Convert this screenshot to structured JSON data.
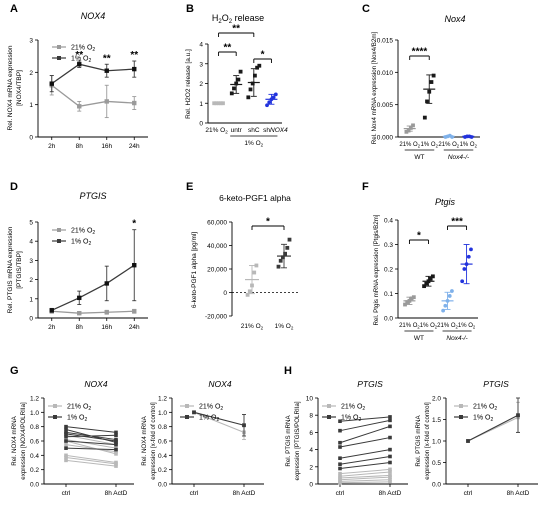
{
  "colors": {
    "black": "#1a1a1a",
    "gray": "#9a9a9a",
    "light_gray": "#b8b8b8",
    "blue": "#2233dd",
    "light_blue": "#7fb1ea",
    "dark_line": "#3a3a3a"
  },
  "chart_data": [
    {
      "panel": "A",
      "type": "line",
      "title": "NOX4",
      "ylabel_lines": [
        "Rel. NOX4 mRNA expression",
        "[NOX4/TBP]"
      ],
      "x": [
        "2h",
        "8h",
        "16h",
        "24h"
      ],
      "ylim": [
        0,
        3
      ],
      "yticks": [
        "0",
        "1",
        "2",
        "3"
      ],
      "series": [
        {
          "name": "21% O2",
          "values": [
            1.6,
            0.95,
            1.1,
            1.05
          ],
          "err": [
            0.3,
            0.15,
            0.5,
            0.2
          ]
        },
        {
          "name": "1% O2",
          "values": [
            1.65,
            2.25,
            2.05,
            2.1
          ],
          "err": [
            0.25,
            0.1,
            0.2,
            0.25
          ]
        }
      ],
      "annotations": [
        {
          "x": "8h",
          "text": "**"
        },
        {
          "x": "16h",
          "text": "**"
        },
        {
          "x": "24h",
          "text": "**"
        }
      ]
    },
    {
      "panel": "B",
      "type": "scatter",
      "title": "H2O2 release",
      "ylabel": "Rel. H2O2 release [a.u.]",
      "categories": [
        "21% O2",
        "untr",
        "shC",
        "shNOX4"
      ],
      "group_label": "1% O2",
      "ylim": [
        0,
        4
      ],
      "yticks": [
        "0",
        "1",
        "2",
        "3",
        "4"
      ],
      "groups": [
        {
          "name": "21% O2",
          "mean": 1.0,
          "sd": 0.0,
          "points": [
            1.0,
            1.0,
            1.0,
            1.0,
            1.0
          ]
        },
        {
          "name": "untr",
          "mean": 1.95,
          "sd": 0.45,
          "points": [
            1.5,
            1.75,
            2.0,
            2.2,
            2.6
          ]
        },
        {
          "name": "shC",
          "mean": 2.05,
          "sd": 0.7,
          "points": [
            1.3,
            1.7,
            2.0,
            2.4,
            2.8,
            2.9
          ]
        },
        {
          "name": "shNOX4",
          "mean": 1.2,
          "sd": 0.25,
          "points": [
            0.9,
            1.05,
            1.2,
            1.3,
            1.45
          ]
        }
      ],
      "significance": [
        {
          "from": "21% O2",
          "to": "shC",
          "text": "**"
        },
        {
          "from": "21% O2",
          "to": "untr",
          "text": "**"
        },
        {
          "from": "shC",
          "to": "shNOX4",
          "text": "*"
        }
      ]
    },
    {
      "panel": "C",
      "type": "scatter",
      "title": "Nox4",
      "ylabel": "Rel. Nox4 mRNA expression [Nox4/B2m]",
      "categories": [
        "21% O2",
        "1% O2",
        "21% O2",
        "1% O2"
      ],
      "groups_label": [
        "WT",
        "Nox4-/-"
      ],
      "ylim": [
        0,
        0.015
      ],
      "yticks": [
        "0.000",
        "0.005",
        "0.010",
        "0.015"
      ],
      "groups": [
        {
          "genotype": "WT",
          "condition": "21% O2",
          "mean": 0.0013,
          "sd": 0.0004,
          "points": [
            0.0008,
            0.001,
            0.0014,
            0.0018
          ]
        },
        {
          "genotype": "WT",
          "condition": "1% O2",
          "mean": 0.0074,
          "sd": 0.0022,
          "points": [
            0.003,
            0.0055,
            0.007,
            0.0085,
            0.0095
          ]
        },
        {
          "genotype": "Nox4-/-",
          "condition": "21% O2",
          "mean": 0.0001,
          "sd": 0.0001,
          "points": [
            0.0,
            0.0001,
            0.0002,
            0.0
          ]
        },
        {
          "genotype": "Nox4-/-",
          "condition": "1% O2",
          "mean": 0.0001,
          "sd": 0.0001,
          "points": [
            0.0,
            0.0001,
            0.0001,
            0.0
          ]
        }
      ],
      "significance": [
        {
          "from": 0,
          "to": 1,
          "text": "****"
        }
      ]
    },
    {
      "panel": "D",
      "type": "line",
      "title": "PTGIS",
      "ylabel_lines": [
        "Rel. PTGIS mRNA expression",
        "[PTGIS/TBP]"
      ],
      "x": [
        "2h",
        "8h",
        "16h",
        "24h"
      ],
      "ylim": [
        0,
        5
      ],
      "yticks": [
        "0",
        "1",
        "2",
        "3",
        "4",
        "5"
      ],
      "series": [
        {
          "name": "21% O2",
          "values": [
            0.35,
            0.25,
            0.3,
            0.35
          ],
          "err": [
            0.1,
            0.05,
            0.1,
            0.1
          ]
        },
        {
          "name": "1% O2",
          "values": [
            0.4,
            1.05,
            1.8,
            2.75
          ],
          "err": [
            0.1,
            0.35,
            0.9,
            1.85
          ]
        }
      ],
      "annotations": [
        {
          "x": "24h",
          "text": "*"
        }
      ]
    },
    {
      "panel": "E",
      "type": "scatter",
      "title": "6-keto-PGF1 alpha",
      "ylabel": "6-keto-PGF1 alpha [pg/ml]",
      "categories": [
        "21% O2",
        "1% O2"
      ],
      "ylim": [
        -20000,
        60000
      ],
      "yticks": [
        "-20,000",
        "0",
        "20,000",
        "40,000",
        "60,000"
      ],
      "groups": [
        {
          "name": "21% O2",
          "mean": 11000,
          "sd": 12000,
          "points": [
            -2000,
            1000,
            6000,
            17000,
            23000
          ]
        },
        {
          "name": "1% O2",
          "mean": 31000,
          "sd": 10000,
          "points": [
            22000,
            27000,
            30000,
            33000,
            38000,
            45000
          ]
        }
      ],
      "significance": [
        {
          "from": "21% O2",
          "to": "1% O2",
          "text": "*"
        }
      ]
    },
    {
      "panel": "F",
      "type": "scatter",
      "title": "Ptgis",
      "ylabel": "Rel. Ptgis mRNA expression [Ptgis/B2m]",
      "categories": [
        "21% O2",
        "1% O2",
        "21% O2",
        "1% O2"
      ],
      "groups_label": [
        "WT",
        "Nox4-/-"
      ],
      "ylim": [
        0,
        0.4
      ],
      "yticks": [
        "0.0",
        "0.1",
        "0.2",
        "0.3",
        "0.4"
      ],
      "groups": [
        {
          "genotype": "WT",
          "condition": "21% O2",
          "mean": 0.07,
          "sd": 0.015,
          "points": [
            0.055,
            0.065,
            0.07,
            0.08,
            0.085
          ]
        },
        {
          "genotype": "WT",
          "condition": "1% O2",
          "mean": 0.15,
          "sd": 0.02,
          "points": [
            0.13,
            0.14,
            0.15,
            0.16,
            0.17
          ]
        },
        {
          "genotype": "Nox4-/-",
          "condition": "21% O2",
          "mean": 0.07,
          "sd": 0.035,
          "points": [
            0.03,
            0.05,
            0.07,
            0.09,
            0.11
          ]
        },
        {
          "genotype": "Nox4-/-",
          "condition": "1% O2",
          "mean": 0.22,
          "sd": 0.08,
          "points": [
            0.15,
            0.2,
            0.22,
            0.25,
            0.28
          ]
        }
      ],
      "significance": [
        {
          "from": 0,
          "to": 1,
          "text": "*"
        },
        {
          "from": 2,
          "to": 3,
          "text": "***"
        }
      ]
    },
    {
      "panel": "G-left",
      "type": "line",
      "title": "NOX4",
      "ylabel_lines": [
        "Rel. NOX4 mRNA",
        "expression [NOX4/POLRIIa]"
      ],
      "x": [
        "ctrl",
        "8h ActD"
      ],
      "ylim": [
        0,
        1.2
      ],
      "yticks": [
        "0.0",
        "0.2",
        "0.4",
        "0.6",
        "0.8",
        "1.0",
        "1.2"
      ],
      "legend": [
        "21% O2",
        "1% O2"
      ],
      "pairs_21": [
        [
          0.68,
          0.55
        ],
        [
          0.62,
          0.5
        ],
        [
          0.55,
          0.45
        ],
        [
          0.4,
          0.3
        ],
        [
          0.37,
          0.28
        ],
        [
          0.33,
          0.25
        ],
        [
          0.6,
          0.42
        ]
      ],
      "pairs_1": [
        [
          0.8,
          0.72
        ],
        [
          0.72,
          0.62
        ],
        [
          0.7,
          0.6
        ],
        [
          0.6,
          0.55
        ],
        [
          0.76,
          0.58
        ],
        [
          0.66,
          0.68
        ],
        [
          0.5,
          0.48
        ]
      ]
    },
    {
      "panel": "G-right",
      "type": "line",
      "title": "NOX4",
      "ylabel_lines": [
        "Rel. NOX4 mRNA",
        "expression [x-fold of control]"
      ],
      "x": [
        "ctrl",
        "8h ActD"
      ],
      "ylim": [
        0,
        1.2
      ],
      "yticks": [
        "0.0",
        "0.2",
        "0.4",
        "0.6",
        "0.8",
        "1.0",
        "1.2"
      ],
      "legend": [
        "21% O2",
        "1% O2"
      ],
      "series": [
        {
          "name": "21% O2",
          "values": [
            1.0,
            0.72
          ],
          "err": [
            0,
            0.1
          ]
        },
        {
          "name": "1% O2",
          "values": [
            1.0,
            0.82
          ],
          "err": [
            0,
            0.15
          ]
        }
      ]
    },
    {
      "panel": "H-left",
      "type": "line",
      "title": "PTGIS",
      "ylabel_lines": [
        "Rel. PTGIS mRNA",
        "expression [PTGIS/POLRIIa]"
      ],
      "x": [
        "ctrl",
        "8h ActD"
      ],
      "ylim": [
        0,
        10
      ],
      "yticks": [
        "0",
        "2",
        "4",
        "6",
        "8",
        "10"
      ],
      "legend": [
        "21% O2",
        "1% O2"
      ],
      "pairs_21": [
        [
          1.2,
          1.7
        ],
        [
          0.9,
          1.4
        ],
        [
          0.7,
          1.0
        ],
        [
          0.5,
          0.8
        ],
        [
          0.3,
          0.5
        ],
        [
          0.15,
          0.25
        ]
      ],
      "pairs_1": [
        [
          7.3,
          7.8
        ],
        [
          6.2,
          7.4
        ],
        [
          4.8,
          6.7
        ],
        [
          4.3,
          5.4
        ],
        [
          3.0,
          4.0
        ],
        [
          2.3,
          3.2
        ],
        [
          1.8,
          2.5
        ]
      ]
    },
    {
      "panel": "H-right",
      "type": "line",
      "title": "PTGIS",
      "ylabel_lines": [
        "Rel. PTGIS mRNA",
        "expression [x-fold of control]"
      ],
      "x": [
        "ctrl",
        "8h ActD"
      ],
      "ylim": [
        0,
        2.0
      ],
      "yticks": [
        "0.0",
        "0.5",
        "1.0",
        "1.5",
        "2.0"
      ],
      "legend": [
        "21% O2",
        "1% O2"
      ],
      "series": [
        {
          "name": "21% O2",
          "values": [
            1.0,
            1.55
          ],
          "err": [
            0,
            0.35
          ]
        },
        {
          "name": "1% O2",
          "values": [
            1.0,
            1.6
          ],
          "err": [
            0,
            0.4
          ]
        }
      ]
    }
  ],
  "panel_letters": [
    "A",
    "B",
    "C",
    "D",
    "E",
    "F",
    "G",
    "H"
  ]
}
